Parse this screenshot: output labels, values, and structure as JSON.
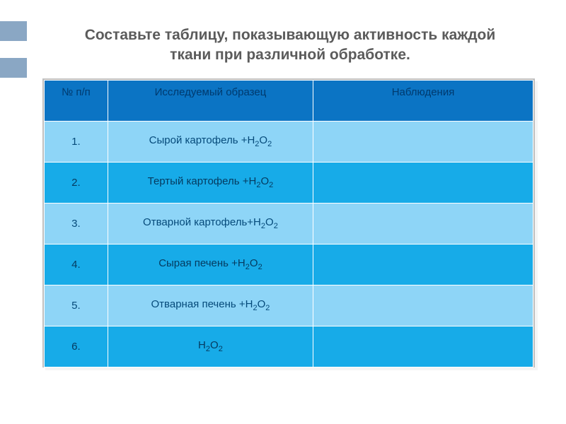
{
  "colors": {
    "stripe": "#8aa7c4",
    "title_text": "#5b5b5b",
    "header_bg": "#0b74c4",
    "header_text": "#003a6e",
    "row_odd_bg": "#8ed5f7",
    "row_even_bg": "#17abe8",
    "row_odd_text": "#054a7a",
    "row_even_text": "#053a5f"
  },
  "title": "Составьте таблицу, показывающую активность каждой ткани при различной обработке.",
  "stripes": {
    "top1": 30,
    "top2": 82
  },
  "table": {
    "columns": [
      {
        "key": "num",
        "label": "№ п/п"
      },
      {
        "key": "sample",
        "label": "Исследуемый образец"
      },
      {
        "key": "obs",
        "label": "Наблюдения"
      }
    ],
    "rows": [
      {
        "num": "1.",
        "sample_html": "Сырой картофель +Н<sub>2</sub>О<sub>2</sub>",
        "obs": ""
      },
      {
        "num": "2.",
        "sample_html": "Тертый картофель +Н<sub>2</sub>О<sub>2</sub>",
        "obs": ""
      },
      {
        "num": "3.",
        "sample_html": "Отварной картофель+Н<sub>2</sub>О<sub>2</sub>",
        "obs": ""
      },
      {
        "num": "4.",
        "sample_html": "Сырая печень +Н<sub>2</sub>О<sub>2</sub>",
        "obs": ""
      },
      {
        "num": "5.",
        "sample_html": "Отварная печень +Н<sub>2</sub>О<sub>2</sub>",
        "obs": ""
      },
      {
        "num": "6.",
        "sample_html": "Н<sub>2</sub>О<sub>2</sub>",
        "obs": ""
      }
    ]
  }
}
